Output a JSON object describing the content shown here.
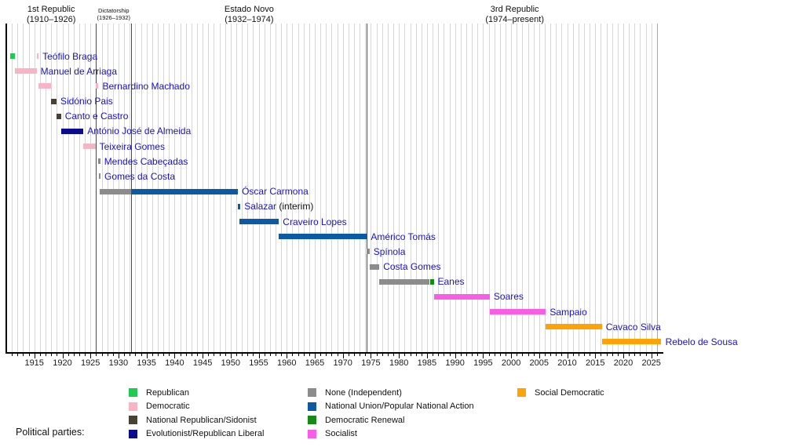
{
  "chart_data": {
    "type": "timeline",
    "legend_title": "Political parties:",
    "axis": {
      "start": 1910,
      "end": 2027,
      "tick_label_start": 1915,
      "tick_label_end": 2025,
      "tick_label_step": 5,
      "minor_tick_every": 1,
      "grid": true
    },
    "periods": [
      {
        "label": "1st Republic",
        "range": "(1910–1926)",
        "start": 1910,
        "end": 1926,
        "small": false
      },
      {
        "label": "Dictatorship",
        "range": "(1926–1932)",
        "start": 1926,
        "end": 1932.3,
        "small": true
      },
      {
        "label": "Estado Novo",
        "range": "(1932–1974)",
        "start": 1932.3,
        "end": 1974.3,
        "small": false
      },
      {
        "label": "3rd Republic",
        "range": "(1974–present)",
        "start": 1974.3,
        "end": 2027,
        "small": false
      }
    ],
    "parties": {
      "republican": {
        "label": "Republican",
        "color": "#1ecb4e"
      },
      "democratic": {
        "label": "Democratic",
        "color": "#f8b4c4"
      },
      "sidonist": {
        "label": "National Republican/Sidonist",
        "color": "#474231"
      },
      "evolutionist": {
        "label": "Evolutionist/Republican Liberal",
        "color": "#0b0b8f"
      },
      "none": {
        "label": "None (Independent)",
        "color": "#8c8c8c"
      },
      "national-union": {
        "label": "National Union/Popular National Action",
        "color": "#0b5aa5"
      },
      "democratic-renewal": {
        "label": "Democratic Renewal",
        "color": "#168a16"
      },
      "socialist": {
        "label": "Socialist",
        "color": "#fa5ce8"
      },
      "social-democratic": {
        "label": "Social Democratic",
        "color": "#ffa303"
      }
    },
    "legend_columns": [
      [
        "republican",
        "democratic",
        "sidonist",
        "evolutionist"
      ],
      [
        "none",
        "national-union",
        "democratic-renewal",
        "socialist"
      ],
      [
        "social-democratic"
      ]
    ],
    "presidents": [
      {
        "name": "Teófilo Braga",
        "suffix": "",
        "segments": [
          {
            "start": 1910.75,
            "end": 1911.6,
            "party": "republican"
          },
          {
            "start": 1915.4,
            "end": 1915.75,
            "party": "democratic"
          }
        ]
      },
      {
        "name": "Manuel de Arriaga",
        "suffix": "",
        "segments": [
          {
            "start": 1911.6,
            "end": 1915.4,
            "party": "democratic"
          }
        ]
      },
      {
        "name": "Bernardino Machado",
        "suffix": "",
        "segments": [
          {
            "start": 1915.75,
            "end": 1917.95,
            "party": "democratic"
          },
          {
            "start": 1925.9,
            "end": 1926.45,
            "party": "democratic"
          }
        ]
      },
      {
        "name": "Sidónio Pais",
        "suffix": "",
        "segments": [
          {
            "start": 1917.95,
            "end": 1918.95,
            "party": "sidonist"
          }
        ]
      },
      {
        "name": "Canto e Castro",
        "suffix": "",
        "segments": [
          {
            "start": 1918.95,
            "end": 1919.75,
            "party": "sidonist"
          }
        ]
      },
      {
        "name": "António José de Almeida",
        "suffix": "",
        "segments": [
          {
            "start": 1919.75,
            "end": 1923.75,
            "party": "evolutionist"
          }
        ]
      },
      {
        "name": "Teixeira Gomes",
        "suffix": "",
        "segments": [
          {
            "start": 1923.75,
            "end": 1925.9,
            "party": "democratic"
          }
        ]
      },
      {
        "name": "Mendes Cabeçadas",
        "suffix": "",
        "segments": [
          {
            "start": 1926.4,
            "end": 1926.55,
            "party": "none"
          }
        ]
      },
      {
        "name": "Gomes da Costa",
        "suffix": "",
        "segments": [
          {
            "start": 1926.45,
            "end": 1926.6,
            "party": "none"
          }
        ]
      },
      {
        "name": "Óscar Carmona",
        "suffix": "",
        "segments": [
          {
            "start": 1926.6,
            "end": 1932.3,
            "party": "none"
          },
          {
            "start": 1932.3,
            "end": 1951.3,
            "party": "national-union"
          }
        ]
      },
      {
        "name": "Salazar",
        "suffix": " (interim)",
        "segments": [
          {
            "start": 1951.3,
            "end": 1951.75,
            "party": "national-union"
          }
        ]
      },
      {
        "name": "Craveiro Lopes",
        "suffix": "",
        "segments": [
          {
            "start": 1951.6,
            "end": 1958.6,
            "party": "national-union"
          }
        ]
      },
      {
        "name": "Américo Tomás",
        "suffix": "",
        "segments": [
          {
            "start": 1958.6,
            "end": 1974.3,
            "party": "national-union"
          }
        ]
      },
      {
        "name": "Spínola",
        "suffix": "",
        "segments": [
          {
            "start": 1974.3,
            "end": 1974.75,
            "party": "none"
          }
        ]
      },
      {
        "name": "Costa Gomes",
        "suffix": "",
        "segments": [
          {
            "start": 1974.75,
            "end": 1976.5,
            "party": "none"
          }
        ]
      },
      {
        "name": "Eanes",
        "suffix": "",
        "segments": [
          {
            "start": 1976.5,
            "end": 1985.5,
            "party": "none"
          },
          {
            "start": 1985.5,
            "end": 1986.2,
            "party": "democratic-renewal"
          }
        ]
      },
      {
        "name": "Soares",
        "suffix": "",
        "segments": [
          {
            "start": 1986.2,
            "end": 1996.2,
            "party": "socialist"
          }
        ]
      },
      {
        "name": "Sampaio",
        "suffix": "",
        "segments": [
          {
            "start": 1996.2,
            "end": 2006.2,
            "party": "socialist"
          }
        ]
      },
      {
        "name": "Cavaco Silva",
        "suffix": "",
        "segments": [
          {
            "start": 2006.2,
            "end": 2016.2,
            "party": "social-democratic"
          }
        ]
      },
      {
        "name": "Rebelo de Sousa",
        "suffix": "",
        "segments": [
          {
            "start": 2016.2,
            "end": 2026.8,
            "party": "social-democratic"
          }
        ]
      }
    ]
  }
}
